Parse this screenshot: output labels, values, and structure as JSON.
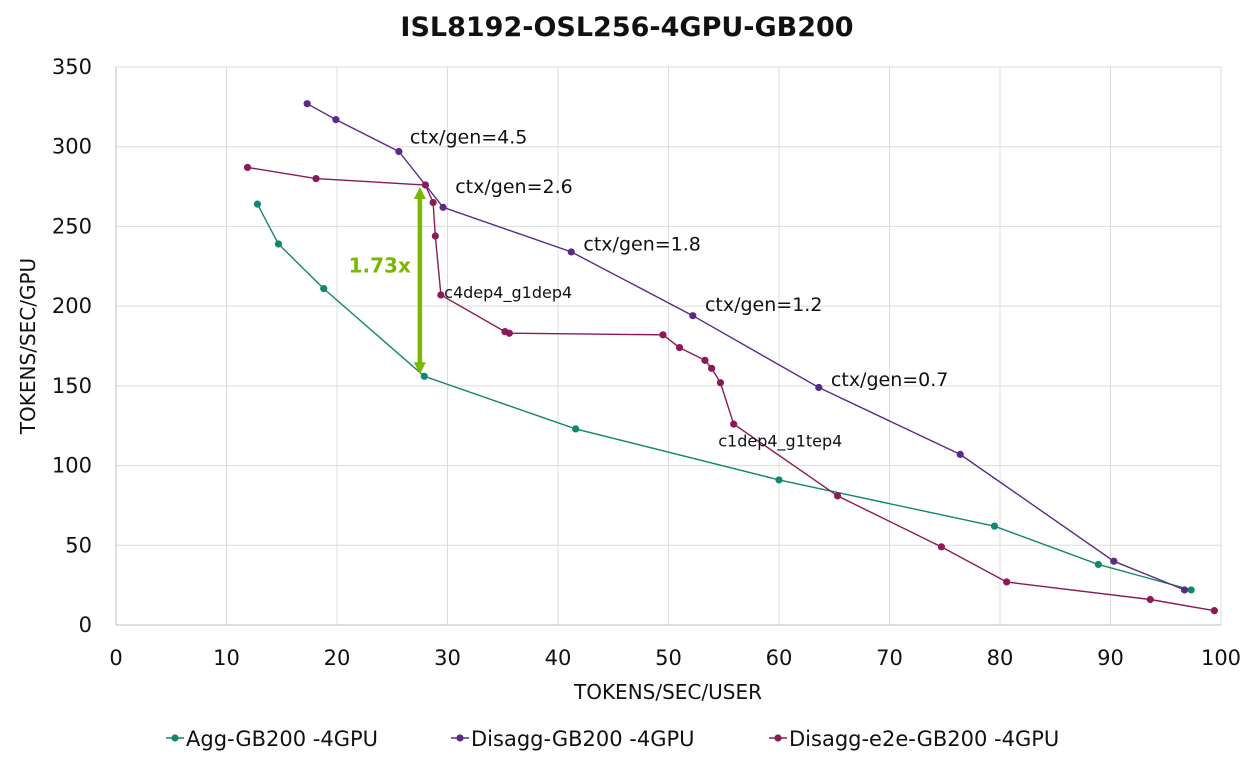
{
  "chart_data": {
    "type": "line",
    "title": "ISL8192-OSL256-4GPU-GB200",
    "xlabel": "TOKENS/SEC/USER",
    "ylabel": "TOKENS/SEC/GPU",
    "xlim": [
      0,
      100
    ],
    "ylim": [
      0,
      350
    ],
    "xticks": [
      0,
      10,
      20,
      30,
      40,
      50,
      60,
      70,
      80,
      90,
      100
    ],
    "yticks": [
      0,
      50,
      100,
      150,
      200,
      250,
      300,
      350
    ],
    "grid": true,
    "legend_position": "bottom",
    "series": [
      {
        "name": "Agg-GB200 -4GPU",
        "color": "#12876f",
        "points": [
          [
            12.8,
            264
          ],
          [
            14.7,
            239
          ],
          [
            18.8,
            211
          ],
          [
            27.9,
            156
          ],
          [
            41.6,
            123
          ],
          [
            60.0,
            91
          ],
          [
            79.5,
            62
          ],
          [
            88.9,
            38
          ],
          [
            97.3,
            22
          ]
        ]
      },
      {
        "name": "Disagg-GB200 -4GPU",
        "color": "#5b2a86",
        "points": [
          [
            17.3,
            327
          ],
          [
            19.9,
            317
          ],
          [
            25.6,
            297
          ],
          [
            29.6,
            262
          ],
          [
            41.2,
            234
          ],
          [
            52.2,
            194
          ],
          [
            63.6,
            149
          ],
          [
            76.4,
            107
          ],
          [
            90.3,
            40
          ],
          [
            96.7,
            22
          ]
        ]
      },
      {
        "name": "Disagg-e2e-GB200 -4GPU",
        "color": "#8b1a57",
        "points": [
          [
            11.9,
            287
          ],
          [
            18.1,
            280
          ],
          [
            28.0,
            276
          ],
          [
            28.7,
            265
          ],
          [
            28.9,
            244
          ],
          [
            29.4,
            207
          ],
          [
            35.2,
            184
          ],
          [
            35.6,
            183
          ],
          [
            49.5,
            182
          ],
          [
            51.0,
            174
          ],
          [
            53.3,
            166
          ],
          [
            53.9,
            161
          ],
          [
            54.7,
            152
          ],
          [
            55.9,
            126
          ],
          [
            65.3,
            81
          ],
          [
            74.7,
            49
          ],
          [
            80.6,
            27
          ],
          [
            93.6,
            16
          ],
          [
            99.4,
            9
          ]
        ]
      }
    ],
    "annotations": [
      {
        "text": "ctx/gen=4.5",
        "x": 26.6,
        "y": 302
      },
      {
        "text": "ctx/gen=2.6",
        "x": 30.7,
        "y": 271
      },
      {
        "text": "ctx/gen=1.8",
        "x": 42.3,
        "y": 235
      },
      {
        "text": "ctx/gen=1.2",
        "x": 53.3,
        "y": 197
      },
      {
        "text": "ctx/gen=0.7",
        "x": 64.7,
        "y": 150
      },
      {
        "text": "c4dep4_g1dep4",
        "x": 29.7,
        "y": 205,
        "size": "small"
      },
      {
        "text": "c1dep4_g1tep4",
        "x": 54.5,
        "y": 112,
        "size": "small"
      }
    ],
    "speedup": {
      "label": "1.73x",
      "x": 27.5,
      "y_top": 276,
      "y_bottom": 156,
      "color": "#7ab800"
    }
  }
}
